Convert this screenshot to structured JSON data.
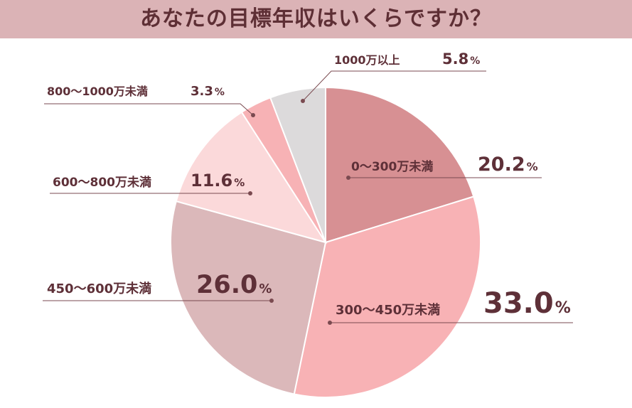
{
  "chart_data": {
    "type": "pie",
    "title": "あなたの目標年収はいくらですか？",
    "start": "top",
    "direction": "clockwise",
    "legend": "none",
    "percent_sign": "%",
    "slices": [
      {
        "label": "0〜300万未満",
        "value": 20.2,
        "display": "20.2",
        "color": "#d79093"
      },
      {
        "label": "300〜450万未満",
        "value": 33.0,
        "display": "33.0",
        "color": "#f8b2b5"
      },
      {
        "label": "450〜600万未満",
        "value": 26.0,
        "display": "26.0",
        "color": "#dbb8ba"
      },
      {
        "label": "600〜800万未満",
        "value": 11.6,
        "display": "11.6",
        "color": "#fbd9da"
      },
      {
        "label": "800〜1000万未満",
        "value": 3.3,
        "display": "3.3",
        "color": "#f7b2b5"
      },
      {
        "label": "1000万以上",
        "value": 5.8,
        "display": "5.8",
        "color": "#dcdadb"
      }
    ]
  },
  "colors": {
    "title_bar": "#dbb3b6",
    "title_text": "#5e2f35",
    "label_text": "#5e3038",
    "leader_line": "#7a4a50",
    "slice_border": "#ffffff"
  }
}
